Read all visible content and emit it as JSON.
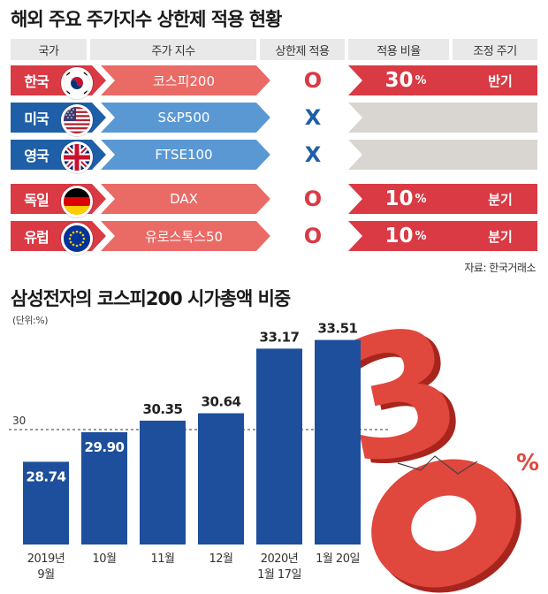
{
  "table": {
    "title": "해외 주요 주가지수 상한제 적용 현황",
    "headers": [
      "국가",
      "주가 지수",
      "상한제 적용",
      "적용 비율",
      "조정 주기"
    ],
    "rows": [
      {
        "country": "한국",
        "index": "코스피200",
        "applied": "O",
        "ratio": "30",
        "ratio_unit": "%",
        "cycle": "반기",
        "status": "applied"
      },
      {
        "country": "미국",
        "index": "S&P500",
        "applied": "X",
        "ratio": "",
        "ratio_unit": "",
        "cycle": "",
        "status": "not-applied"
      },
      {
        "country": "영국",
        "index": "FTSE100",
        "applied": "X",
        "ratio": "",
        "ratio_unit": "",
        "cycle": "",
        "status": "not-applied"
      },
      {
        "country": "독일",
        "index": "DAX",
        "applied": "O",
        "ratio": "10",
        "ratio_unit": "%",
        "cycle": "분기",
        "status": "applied"
      },
      {
        "country": "유럽",
        "index": "유로스톡스50",
        "applied": "O",
        "ratio": "10",
        "ratio_unit": "%",
        "cycle": "분기",
        "status": "applied"
      }
    ],
    "source": "자료: 한국거래소"
  },
  "colors": {
    "red": "#d93a44",
    "red_light": "#ea6a66",
    "blue": "#1f5fa8",
    "blue_light": "#5a98d4",
    "bar": "#1e4f9c",
    "gray": "#d9d6d1",
    "big_number": "#e0473d"
  },
  "chart_data": {
    "type": "bar",
    "title": "삼성전자의 코스피200 시가총액 비중",
    "unit_label": "(단위:%)",
    "categories": [
      [
        "2019년",
        "9월"
      ],
      [
        "10월"
      ],
      [
        "11월"
      ],
      [
        "12월"
      ],
      [
        "2020년",
        "1월 17일"
      ],
      [
        "1월 20일"
      ]
    ],
    "values": [
      28.74,
      29.9,
      30.35,
      30.64,
      33.17,
      33.51
    ],
    "value_labels": [
      "28.74",
      "29.90",
      "30.35",
      "30.64",
      "33.17",
      "33.51"
    ],
    "reference_line": {
      "value": 30,
      "label": "30"
    },
    "ylim": [
      25.5,
      34.5
    ],
    "decoration": {
      "number": "30",
      "unit": "%"
    }
  }
}
